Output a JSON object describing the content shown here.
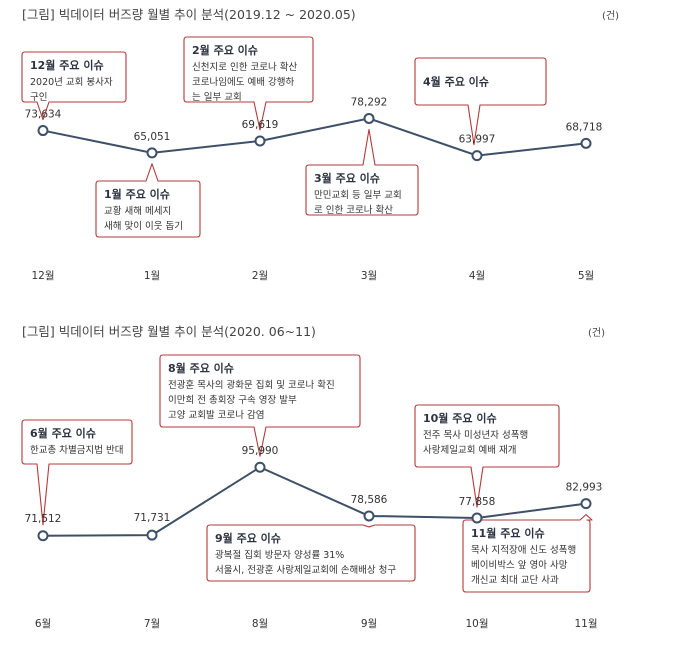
{
  "accent_color": "#b53a3a",
  "line_color": "#3d5068",
  "chart_data": [
    {
      "type": "line",
      "title": "[그림] 빅데이터 버즈량 월별 추이 분석(2019.12 ~ 2020.05)",
      "unit": "(건)",
      "categories": [
        "12월",
        "1월",
        "2월",
        "3월",
        "4월",
        "5월"
      ],
      "values": [
        73634,
        65051,
        69619,
        78292,
        63997,
        68718
      ],
      "value_labels": [
        "73,634",
        "65,051",
        "69,619",
        "78,292",
        "63,997",
        "68,718"
      ],
      "ylim": [
        60000,
        80000
      ],
      "grid": false,
      "annotations": [
        {
          "point": 0,
          "position": "above",
          "title": "12월 주요 이슈",
          "lines": [
            "2020년 교회 봉사자",
            "구인"
          ]
        },
        {
          "point": 1,
          "position": "below",
          "title": "1월 주요 이슈",
          "lines": [
            "교황 새해 메세지",
            "새해 맞이 이웃 돕기"
          ]
        },
        {
          "point": 2,
          "position": "above",
          "title": "2월 주요 이슈",
          "lines": [
            "신천지로 인한 코로나 확산",
            "코로나임에도 예배 강행하",
            "는 일부 교회"
          ]
        },
        {
          "point": 3,
          "position": "below",
          "title": "3월 주요 이슈",
          "lines": [
            "만민교회 등 일부 교회",
            "로 인한 코로나 확산"
          ]
        },
        {
          "point": 4,
          "position": "above",
          "title": "4월 주요 이슈",
          "lines": []
        }
      ]
    },
    {
      "type": "line",
      "title": "[그림] 빅데이터 버즈량 월별 추이 분석(2020. 06~11)",
      "unit": "(건)",
      "categories": [
        "6월",
        "7월",
        "8월",
        "9월",
        "10월",
        "11월"
      ],
      "values": [
        71512,
        71731,
        95990,
        78586,
        77858,
        82993
      ],
      "value_labels": [
        "71,512",
        "71,731",
        "95,990",
        "78,586",
        "77,858",
        "82,993"
      ],
      "ylim": [
        70000,
        100000
      ],
      "grid": false,
      "annotations": [
        {
          "point": 0,
          "position": "above",
          "title": "6월 주요 이슈",
          "lines": [
            "한교총 차별금지법 반대"
          ]
        },
        {
          "point": 2,
          "position": "above",
          "title": "8월 주요 이슈",
          "lines": [
            "전광훈 목사의 광화문 집회 및 코로나 확진",
            "이만희 전 총회장 구속 영장 발부",
            "고양 교회발 코로나 감염"
          ]
        },
        {
          "point": 3,
          "position": "below",
          "title": "9월 주요 이슈",
          "lines": [
            "광복절 집회 방문자 양성률 31%",
            "서울시, 전광훈 사랑제일교회에 손해배상 청구"
          ]
        },
        {
          "point": 4,
          "position": "above",
          "title": "10월 주요 이슈",
          "lines": [
            "전주 목사 미성년자 성폭행",
            "사랑제일교회 예배 재개"
          ]
        },
        {
          "point": 5,
          "position": "below",
          "title": "11월 주요 이슈",
          "lines": [
            "목사 지적장애 신도 성폭행",
            "베이비박스 앞 영아 사망",
            "개신교 최대 교단 사과"
          ]
        }
      ]
    }
  ]
}
